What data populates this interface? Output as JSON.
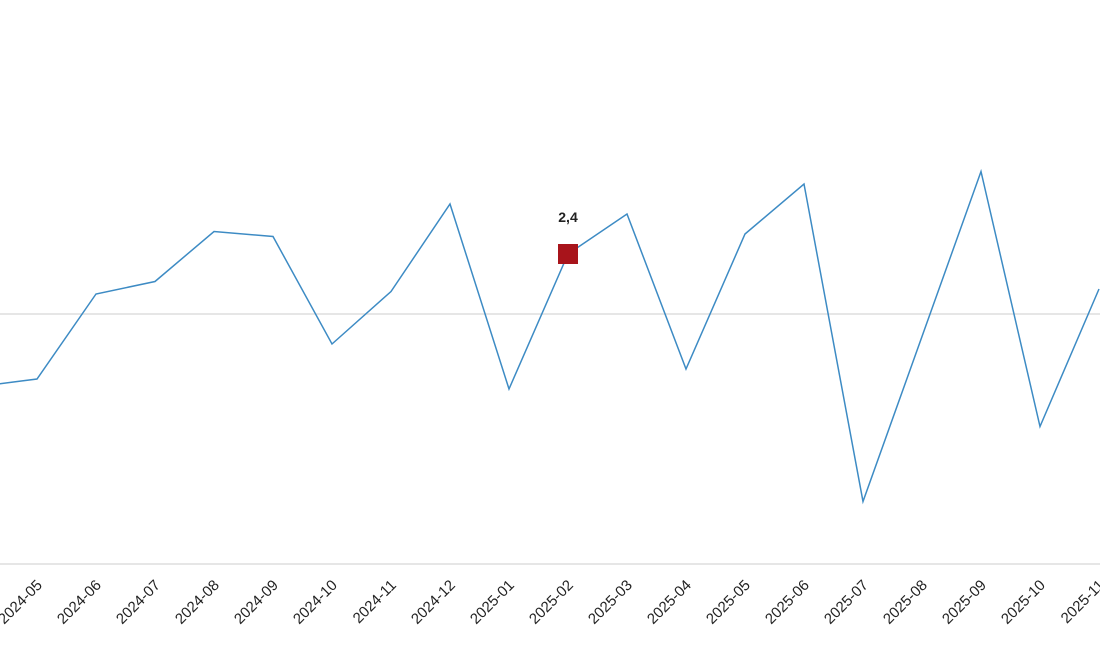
{
  "chart_data": {
    "type": "line",
    "categories": [
      null,
      "2024-05",
      "2024-06",
      "2024-07",
      "2024-08",
      "2024-09",
      "2024-10",
      "2024-11",
      "2024-12",
      "2025-01",
      "2025-02",
      "2025-03",
      "2025-04",
      "2025-05",
      "2025-06",
      "2025-07",
      "2025-08",
      "2025-09",
      "2025-10",
      "2025-11"
    ],
    "values": [
      -2.9,
      -2.6,
      0.8,
      1.3,
      3.3,
      3.1,
      -1.2,
      0.9,
      4.4,
      -3.0,
      2.4,
      4.0,
      -2.2,
      3.2,
      5.2,
      -7.5,
      -0.9,
      5.7,
      -4.5,
      1.0
    ],
    "value_labels": [
      null,
      null,
      null,
      null,
      null,
      null,
      null,
      null,
      null,
      null,
      "2,4",
      null,
      null,
      null,
      null,
      null,
      null,
      null,
      null,
      null
    ],
    "color": "#3d8bc4",
    "highlight_color": "#a8141b",
    "ylim": [
      -10,
      10
    ],
    "zero_line": true
  }
}
